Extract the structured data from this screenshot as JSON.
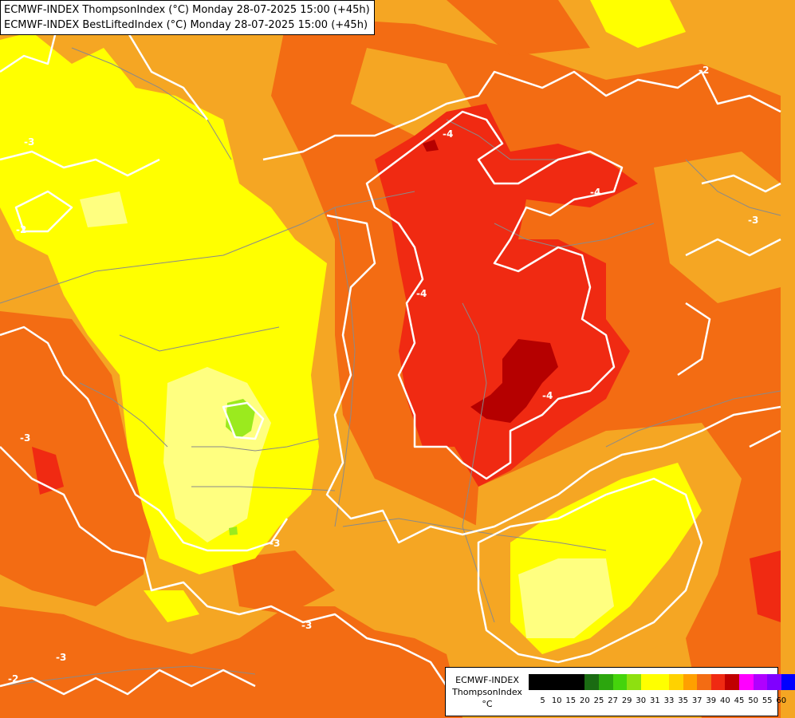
{
  "header": {
    "line1": "ECMWF-INDEX ThompsonIndex (°C) Monday 28-07-2025 15:00 (+45h)",
    "line2": "ECMWF-INDEX BestLiftedIndex (°C) Monday 28-07-2025 15:00 (+45h)"
  },
  "legend": {
    "model": "ECMWF-INDEX",
    "parameter": "ThompsonIndex",
    "unit": "°C",
    "ticks": [
      "5",
      "10",
      "15",
      "20",
      "25",
      "27",
      "29",
      "30",
      "31",
      "33",
      "35",
      "37",
      "39",
      "40",
      "45",
      "50",
      "55",
      "60"
    ],
    "colors": [
      "#000000",
      "#000000",
      "#000000",
      "#000000",
      "#1a6b12",
      "#2ca60e",
      "#45d40c",
      "#8ee010",
      "#ffff00",
      "#ffff00",
      "#ffd200",
      "#ffa000",
      "#f36c13",
      "#f02a12",
      "#c00000",
      "#ff00ff",
      "#b000ff",
      "#8000ff",
      "#0000ff"
    ]
  },
  "contour_labels": [
    "-3",
    "-2",
    "-4",
    "-4",
    "-4",
    "-4",
    "-3",
    "-3",
    "-3",
    "-3",
    "-2",
    "-2",
    "-3"
  ],
  "colors": {
    "background": "#f5a623",
    "orange_dark": "#f36c13",
    "red": "#f02a12",
    "dark_red": "#b50000",
    "yellow": "#ffff00",
    "light_yellow": "#ffff80",
    "lime": "#9bea1e",
    "contour": "#ffffff",
    "border": "#8a8a8a"
  }
}
